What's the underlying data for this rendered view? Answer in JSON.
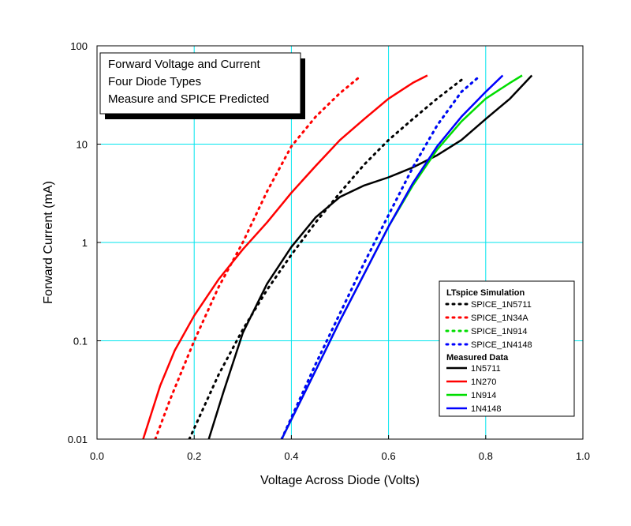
{
  "chart_data": {
    "type": "line",
    "title_lines": [
      "Forward Voltage and Current",
      "Four Diode Types",
      "Measure and SPICE Predicted"
    ],
    "xlabel": "Voltage Across Diode (Volts)",
    "ylabel": "Forward Current (mA)",
    "xlim": [
      0,
      1.0
    ],
    "ylim": [
      0.01,
      100
    ],
    "yscale": "log",
    "grid": true,
    "grid_color": "#00e5ee",
    "x_ticks": [
      0,
      0.2,
      0.4,
      0.6,
      0.8,
      1.0
    ],
    "x_tick_labels": [
      "0.0",
      "0.2",
      "0.4",
      "0.6",
      "0.8",
      "1.0"
    ],
    "y_ticks": [
      0.01,
      0.1,
      1,
      10,
      100
    ],
    "y_tick_labels": [
      "0.01",
      "0.1",
      "1",
      "10",
      "100"
    ],
    "legend_position": "lower-right",
    "legend_groups": [
      {
        "heading": "LTspice Simulation",
        "entries": [
          "SPICE_1N5711",
          "SPICE_1N34A",
          "SPICE_1N914",
          "SPICE_1N4148"
        ]
      },
      {
        "heading": "Measured Data",
        "entries": [
          "1N5711",
          "1N270",
          "1N914",
          "1N4148"
        ]
      }
    ],
    "series": [
      {
        "name": "SPICE_1N5711",
        "color": "#000000",
        "style": "dotted",
        "x": [
          0.19,
          0.25,
          0.3,
          0.35,
          0.4,
          0.45,
          0.5,
          0.55,
          0.6,
          0.65,
          0.7,
          0.755
        ],
        "y": [
          0.01,
          0.045,
          0.13,
          0.33,
          0.75,
          1.6,
          3.2,
          6.2,
          11,
          18,
          29,
          47
        ]
      },
      {
        "name": "SPICE_1N34A",
        "color": "#ff0000",
        "style": "dotted",
        "x": [
          0.12,
          0.15,
          0.2,
          0.25,
          0.3,
          0.35,
          0.4,
          0.45,
          0.5,
          0.54
        ],
        "y": [
          0.01,
          0.025,
          0.1,
          0.35,
          1.0,
          3.3,
          9.5,
          19,
          33,
          48
        ]
      },
      {
        "name": "SPICE_1N914",
        "color": "#00dd00",
        "style": "dotted",
        "x": [
          0.38,
          0.45,
          0.5,
          0.55,
          0.6,
          0.65,
          0.7,
          0.75,
          0.785
        ],
        "y": [
          0.01,
          0.058,
          0.19,
          0.62,
          1.9,
          5.8,
          15.5,
          34,
          48
        ]
      },
      {
        "name": "SPICE_1N4148",
        "color": "#0000ff",
        "style": "dotted",
        "x": [
          0.38,
          0.45,
          0.5,
          0.55,
          0.6,
          0.65,
          0.7,
          0.75,
          0.785
        ],
        "y": [
          0.01,
          0.058,
          0.19,
          0.62,
          1.9,
          5.8,
          15.5,
          34,
          48
        ]
      },
      {
        "name": "1N5711",
        "color": "#000000",
        "style": "solid",
        "x": [
          0.23,
          0.26,
          0.3,
          0.35,
          0.4,
          0.45,
          0.5,
          0.55,
          0.6,
          0.65,
          0.7,
          0.75,
          0.8,
          0.85,
          0.895
        ],
        "y": [
          0.01,
          0.03,
          0.12,
          0.38,
          0.9,
          1.8,
          2.9,
          3.8,
          4.6,
          5.8,
          7.7,
          11,
          18,
          29,
          50
        ]
      },
      {
        "name": "1N270",
        "color": "#ff0000",
        "style": "solid",
        "x": [
          0.095,
          0.13,
          0.16,
          0.2,
          0.25,
          0.3,
          0.35,
          0.4,
          0.45,
          0.5,
          0.55,
          0.6,
          0.65,
          0.68
        ],
        "y": [
          0.01,
          0.035,
          0.08,
          0.18,
          0.42,
          0.85,
          1.6,
          3.2,
          6.0,
          11,
          18,
          29,
          42,
          50
        ]
      },
      {
        "name": "1N914",
        "color": "#00dd00",
        "style": "solid",
        "x": [
          0.38,
          0.45,
          0.5,
          0.55,
          0.6,
          0.65,
          0.7,
          0.75,
          0.8,
          0.85,
          0.875
        ],
        "y": [
          0.01,
          0.05,
          0.16,
          0.48,
          1.45,
          3.8,
          8.8,
          17,
          29,
          42,
          50
        ]
      },
      {
        "name": "1N4148",
        "color": "#0000ff",
        "style": "solid",
        "x": [
          0.38,
          0.45,
          0.5,
          0.55,
          0.6,
          0.65,
          0.7,
          0.75,
          0.8,
          0.835
        ],
        "y": [
          0.01,
          0.05,
          0.16,
          0.48,
          1.45,
          4.0,
          9.5,
          19,
          34,
          50
        ]
      }
    ]
  }
}
